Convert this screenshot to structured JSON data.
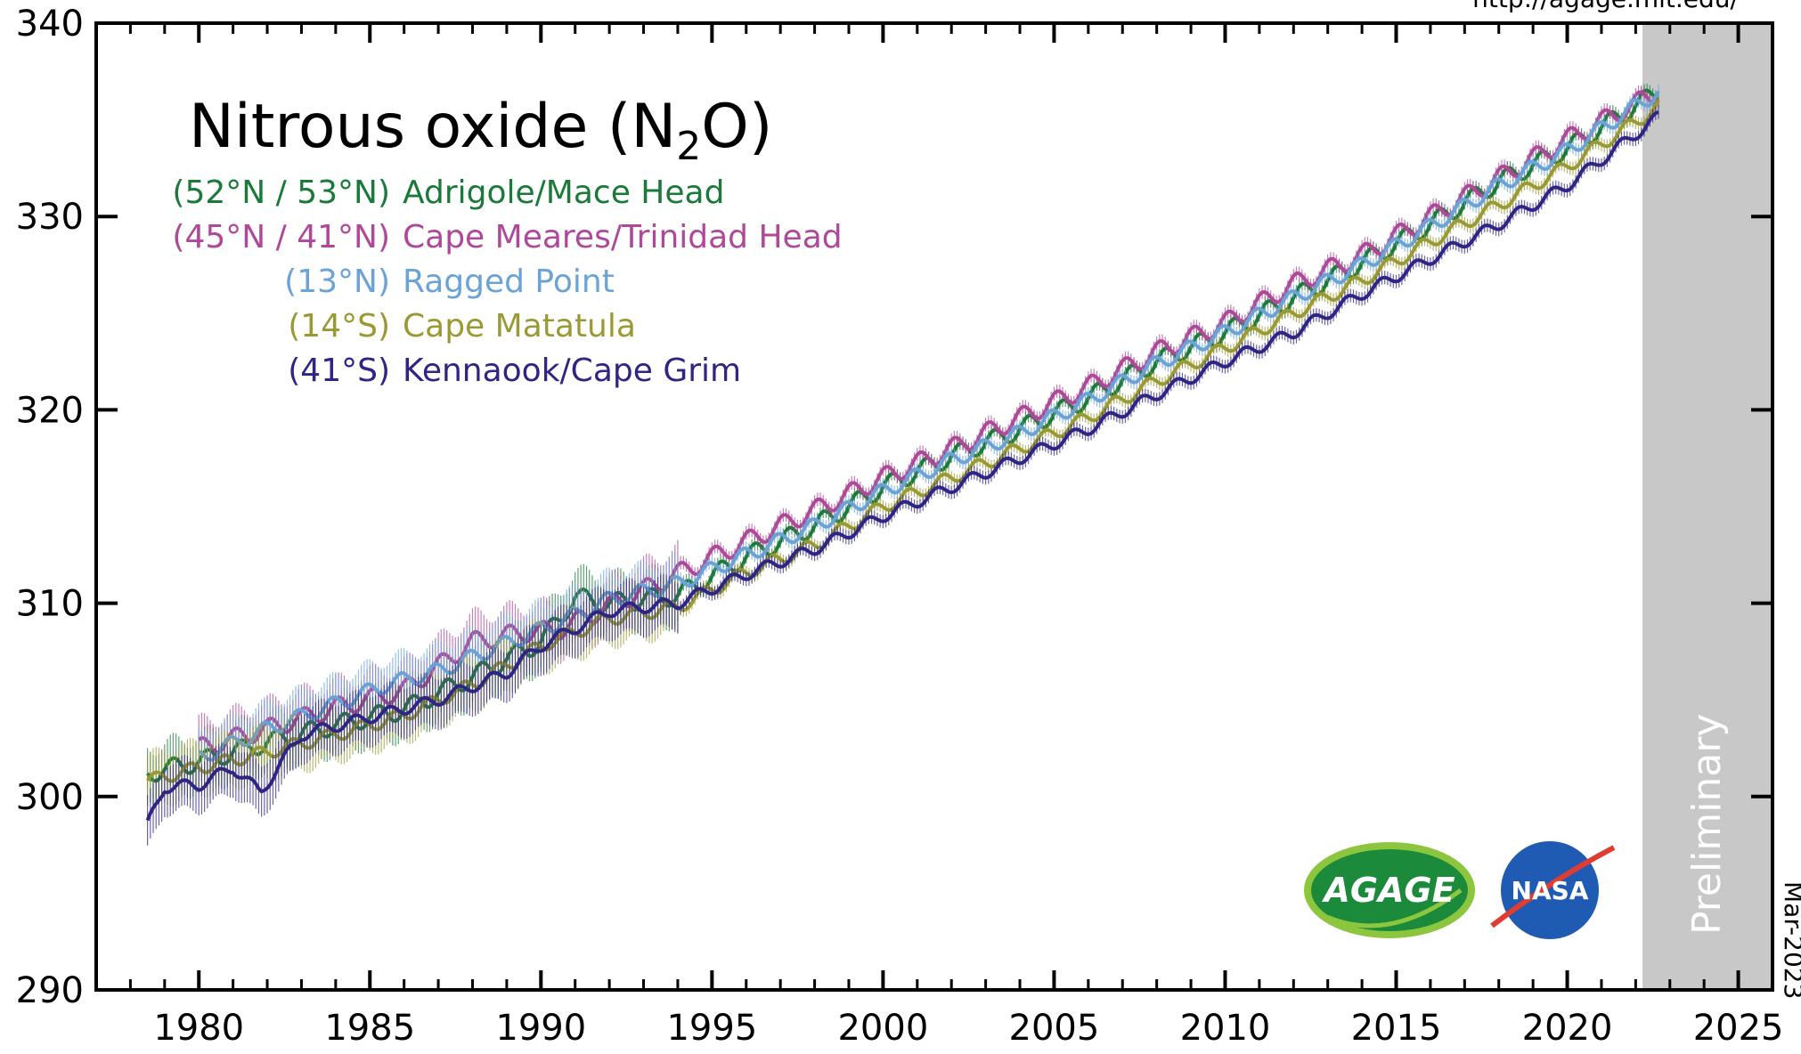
{
  "chart_data": {
    "type": "line",
    "title_main": "Nitrous oxide (N",
    "title_sub": "2",
    "title_end": "O)",
    "xlabel": "",
    "ylabel": "",
    "xlim": [
      1977,
      2026
    ],
    "ylim": [
      290,
      340
    ],
    "x_ticks": [
      "1980",
      "1985",
      "1990",
      "1995",
      "2000",
      "2005",
      "2010",
      "2015",
      "2020",
      "2025"
    ],
    "y_ticks": [
      "290",
      "300",
      "310",
      "320",
      "330",
      "340"
    ],
    "source_url": "http://agage.mit.edu/",
    "date_stamp": "Mar-2023",
    "preliminary_label": "Preliminary",
    "preliminary_start": 2022.2,
    "preliminary_color": "#c8c8c8",
    "logos": {
      "agage": "AGAGE",
      "nasa": "NASA"
    },
    "series": [
      {
        "name": "Adrigole/Mace Head",
        "lat_label": "(52°N / 53°N)",
        "color": "#1a7a3a",
        "seasonal_amp": 0.5,
        "x": [
          1978.5,
          1980,
          1982,
          1984,
          1986,
          1988,
          1990,
          1991,
          1992,
          1994,
          1996,
          1998,
          2000,
          2002,
          2004,
          2006,
          2008,
          2010,
          2012,
          2014,
          2016,
          2018,
          2020,
          2022.7
        ],
        "y": [
          301.2,
          301.8,
          302.8,
          303.7,
          304.5,
          306.2,
          308.0,
          310.3,
          310.0,
          310.4,
          312.4,
          314.0,
          316.0,
          317.6,
          319.0,
          320.6,
          322.5,
          324.0,
          325.8,
          327.6,
          329.6,
          331.8,
          333.5,
          336.5
        ]
      },
      {
        "name": "Cape Meares/Trinidad Head",
        "lat_label": "(45°N / 41°N)",
        "color": "#b0489a",
        "seasonal_amp": 0.5,
        "x": [
          1980,
          1982,
          1984,
          1986,
          1988,
          1989.5,
          1990.5,
          1996,
          1998,
          2000,
          2002,
          2004,
          2006,
          2008,
          2010,
          2012,
          2014,
          2016,
          2018,
          2020,
          2022.7
        ],
        "y": [
          302.5,
          303.5,
          304.6,
          305.5,
          308.0,
          308.5,
          308.6,
          313.2,
          314.8,
          316.5,
          318.0,
          319.6,
          321.2,
          323.0,
          324.5,
          326.5,
          328.0,
          330.0,
          332.0,
          334.0,
          336.5
        ]
      },
      {
        "name": "Ragged Point",
        "lat_label": "(13°N)",
        "color": "#6ba3d6",
        "seasonal_amp": 0.4,
        "x": [
          1980,
          1982,
          1984,
          1985.5,
          1987,
          1990.5,
          1992,
          1994,
          1996,
          1998,
          2000,
          2002,
          2004,
          2006,
          2008,
          2010,
          2012,
          2014,
          2016,
          2018,
          2020,
          2022.7
        ],
        "y": [
          302.0,
          303.5,
          304.8,
          305.8,
          306.5,
          309.0,
          310.2,
          311.0,
          312.5,
          314.0,
          315.8,
          317.4,
          318.8,
          320.5,
          322.4,
          324.0,
          325.8,
          327.5,
          329.5,
          331.6,
          333.4,
          336.5
        ]
      },
      {
        "name": "Cape Matatula",
        "lat_label": "(14°S)",
        "color": "#9a9a35",
        "seasonal_amp": 0.35,
        "x": [
          1978.5,
          1980,
          1982,
          1984,
          1986,
          1988,
          1990,
          1992,
          1994,
          1996,
          1998,
          2000,
          2002,
          2004,
          2006,
          2008,
          2010,
          2012,
          2014,
          2016,
          2018,
          2020,
          2022.7
        ],
        "y": [
          300.8,
          301.5,
          302.3,
          303.2,
          304.2,
          305.8,
          307.8,
          309.2,
          309.8,
          311.6,
          313.0,
          315.0,
          316.5,
          318.0,
          319.6,
          321.5,
          323.2,
          325.0,
          326.7,
          328.7,
          330.6,
          332.6,
          335.7
        ]
      },
      {
        "name": "Kennaook/Cape Grim",
        "lat_label": "(41°S)",
        "color": "#2e2585",
        "seasonal_amp": 0.3,
        "x": [
          1978.5,
          1979,
          1980,
          1981,
          1981.8,
          1983,
          1985,
          1987,
          1989,
          1990,
          1992,
          1994,
          1996,
          1998,
          2000,
          2002,
          2004,
          2006,
          2008,
          2010,
          2012,
          2014,
          2016,
          2018,
          2020,
          2022.7
        ],
        "y": [
          298.5,
          300.5,
          300.6,
          301.5,
          300.2,
          303.2,
          304.1,
          305.0,
          306.4,
          307.8,
          309.6,
          310.0,
          311.5,
          312.8,
          314.5,
          316.0,
          317.5,
          319.0,
          320.8,
          322.5,
          324.0,
          326.0,
          327.8,
          329.6,
          331.6,
          335.2
        ]
      }
    ]
  }
}
